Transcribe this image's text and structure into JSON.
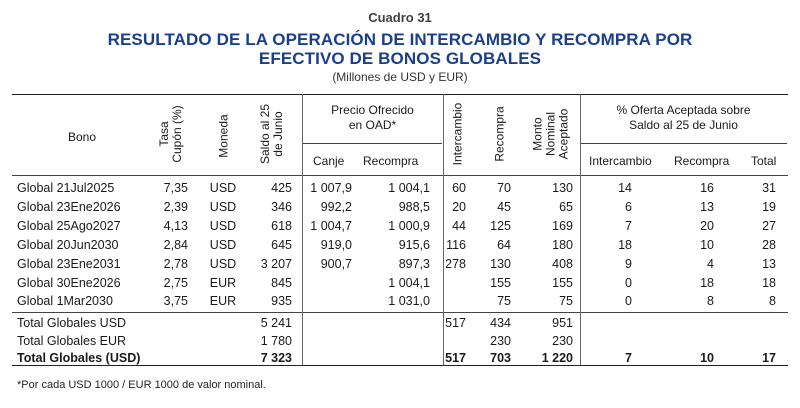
{
  "cuadro": "Cuadro 31",
  "title_line1": "RESULTADO DE LA OPERACIÓN DE INTERCAMBIO Y RECOMPRA POR",
  "title_line2": "EFECTIVO DE BONOS GLOBALES",
  "subtitle": "(Millones de USD y EUR)",
  "headers": {
    "bono": "Bono",
    "tasa_l1": "Tasa",
    "tasa_l2": "Cupón (%)",
    "moneda": "Moneda",
    "saldo_l1": "Saldo al 25",
    "saldo_l2": "de Junio",
    "precio_l1": "Precio Ofrecido",
    "precio_l2": "en OAD*",
    "canje": "Canje",
    "recompra": "Recompra",
    "intercambio": "Intercambio",
    "recompra_col": "Recompra",
    "monto_l1": "Monto",
    "monto_l2": "Nominal",
    "monto_l3": "Aceptado",
    "oferta_l1": "% Oferta Aceptada sobre",
    "oferta_l2": "Saldo al 25 de Junio",
    "oferta_intercambio": "Intercambio",
    "oferta_recompra": "Recompra",
    "oferta_total": "Total"
  },
  "rows": [
    {
      "bono": "Global 21Jul2025",
      "tasa": "7,35",
      "moneda": "USD",
      "saldo": "425",
      "canje": "1 007,9",
      "recompra_precio": "1 004,1",
      "intercambio": "60",
      "recompra": "70",
      "monto": "130",
      "of_int": "14",
      "of_rec": "16",
      "of_tot": "31"
    },
    {
      "bono": "Global 23Ene2026",
      "tasa": "2,39",
      "moneda": "USD",
      "saldo": "346",
      "canje": "992,2",
      "recompra_precio": "988,5",
      "intercambio": "20",
      "recompra": "45",
      "monto": "65",
      "of_int": "6",
      "of_rec": "13",
      "of_tot": "19"
    },
    {
      "bono": "Global 25Ago2027",
      "tasa": "4,13",
      "moneda": "USD",
      "saldo": "618",
      "canje": "1 004,7",
      "recompra_precio": "1 000,9",
      "intercambio": "44",
      "recompra": "125",
      "monto": "169",
      "of_int": "7",
      "of_rec": "20",
      "of_tot": "27"
    },
    {
      "bono": "Global 20Jun2030",
      "tasa": "2,84",
      "moneda": "USD",
      "saldo": "645",
      "canje": "919,0",
      "recompra_precio": "915,6",
      "intercambio": "116",
      "recompra": "64",
      "monto": "180",
      "of_int": "18",
      "of_rec": "10",
      "of_tot": "28"
    },
    {
      "bono": "Global 23Ene2031",
      "tasa": "2,78",
      "moneda": "USD",
      "saldo": "3 207",
      "canje": "900,7",
      "recompra_precio": "897,3",
      "intercambio": "278",
      "recompra": "130",
      "monto": "408",
      "of_int": "9",
      "of_rec": "4",
      "of_tot": "13"
    },
    {
      "bono": "Global 30Ene2026",
      "tasa": "2,75",
      "moneda": "EUR",
      "saldo": "845",
      "canje": "",
      "recompra_precio": "1 004,1",
      "intercambio": "",
      "recompra": "155",
      "monto": "155",
      "of_int": "0",
      "of_rec": "18",
      "of_tot": "18"
    },
    {
      "bono": "Global 1Mar2030",
      "tasa": "3,75",
      "moneda": "EUR",
      "saldo": "935",
      "canje": "",
      "recompra_precio": "1 031,0",
      "intercambio": "",
      "recompra": "75",
      "monto": "75",
      "of_int": "0",
      "of_rec": "8",
      "of_tot": "8"
    }
  ],
  "totals": [
    {
      "bono": "Total Globales USD",
      "tasa": "",
      "moneda": "",
      "saldo": "5 241",
      "canje": "",
      "recompra_precio": "",
      "intercambio": "517",
      "recompra": "434",
      "monto": "951",
      "of_int": "",
      "of_rec": "",
      "of_tot": ""
    },
    {
      "bono": "Total Globales EUR",
      "tasa": "",
      "moneda": "",
      "saldo": "1 780",
      "canje": "",
      "recompra_precio": "",
      "intercambio": "",
      "recompra": "230",
      "monto": "230",
      "of_int": "",
      "of_rec": "",
      "of_tot": ""
    },
    {
      "bono": "Total Globales (USD)",
      "tasa": "",
      "moneda": "",
      "saldo": "7 323",
      "canje": "",
      "recompra_precio": "",
      "intercambio": "517",
      "recompra": "703",
      "monto": "1 220",
      "of_int": "7",
      "of_rec": "10",
      "of_tot": "17"
    }
  ],
  "footnote": "*Por cada USD 1000 / EUR 1000 de valor nominal."
}
